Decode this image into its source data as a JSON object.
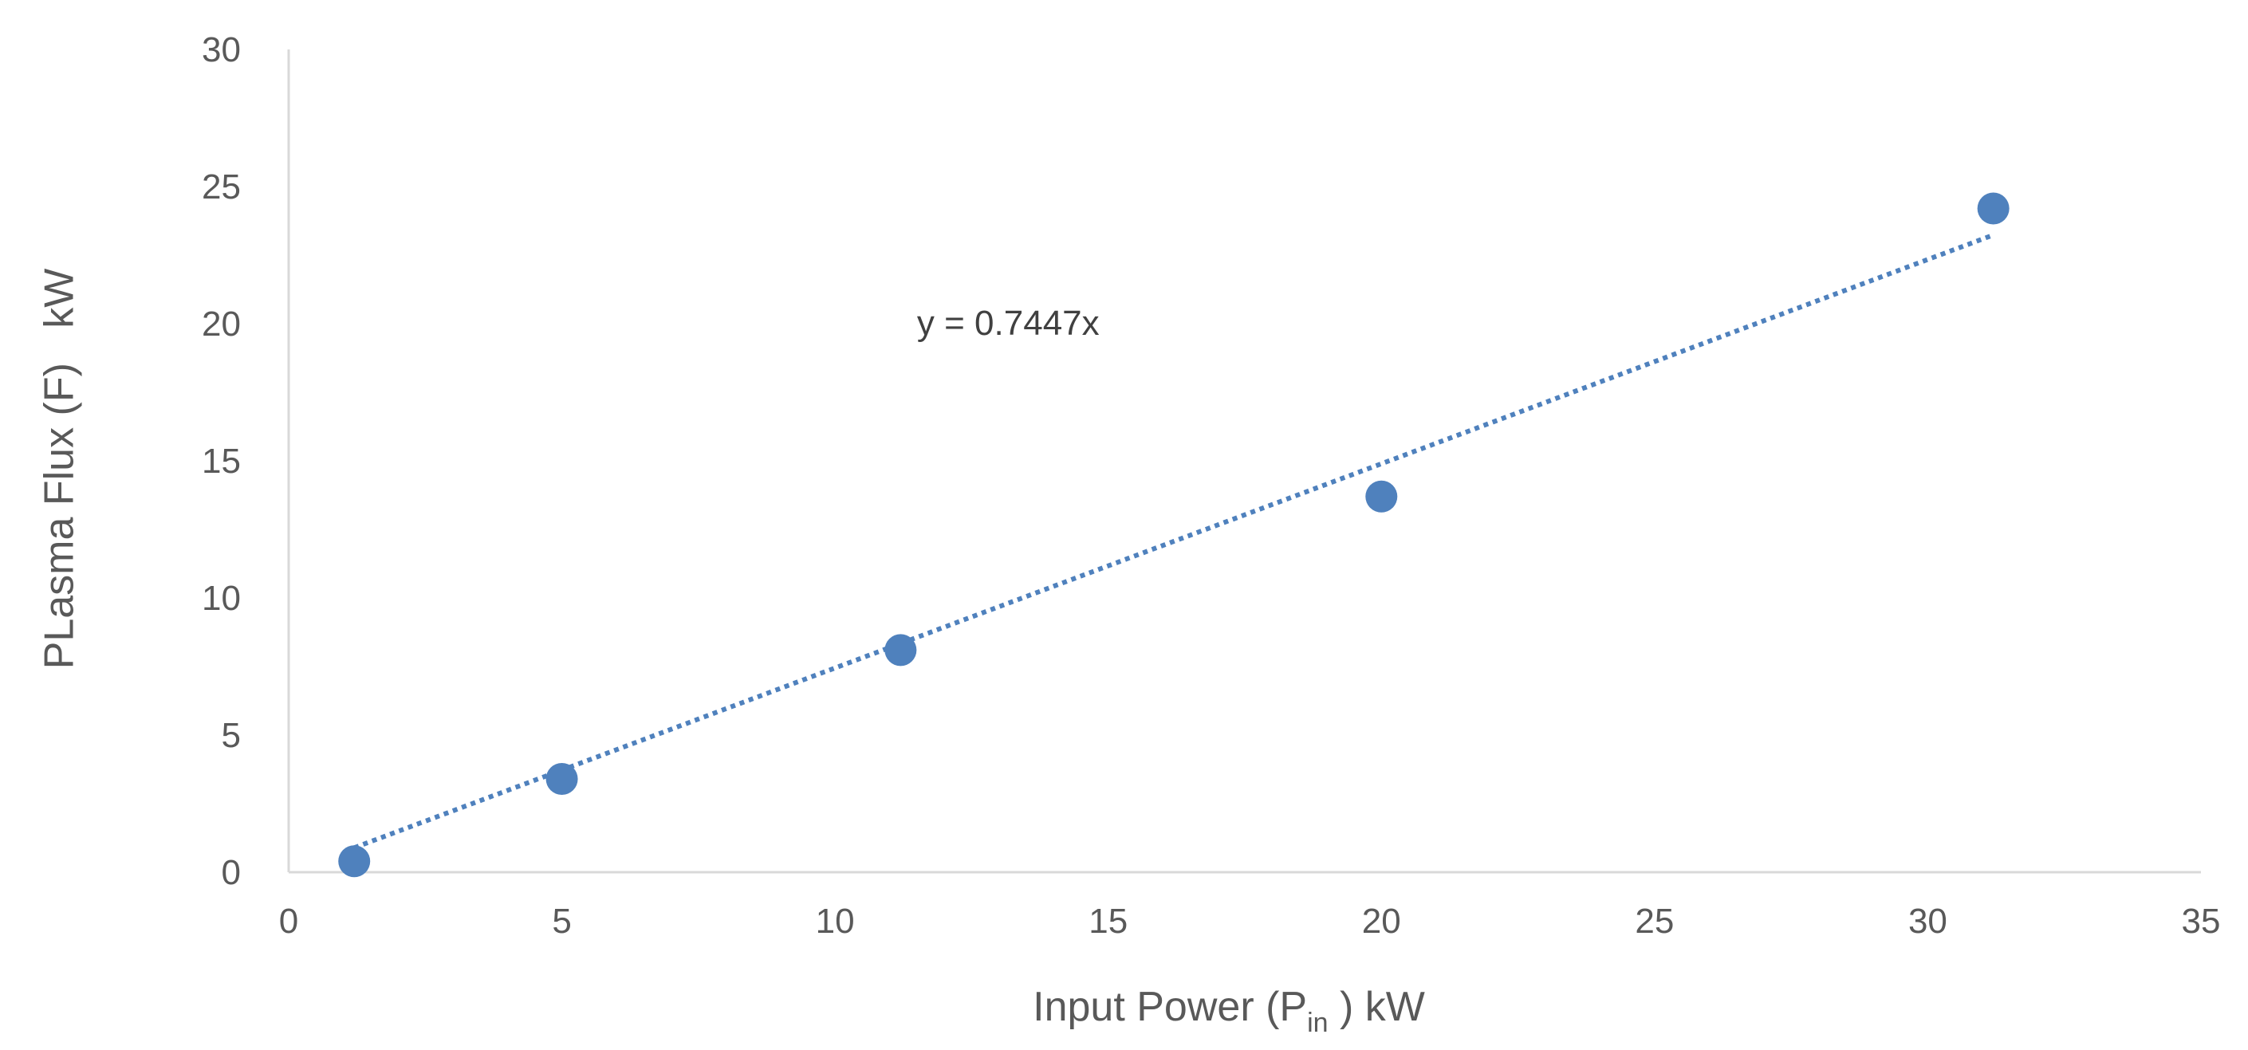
{
  "chart_data": {
    "type": "scatter",
    "xlabel": {
      "main": "Input Power (P",
      "subscript": "in",
      "suffix": " ) kW"
    },
    "ylabel": "PLasma Flux (F)   kW",
    "xlim": [
      0,
      35
    ],
    "ylim": [
      0,
      30
    ],
    "x_ticks": [
      "0",
      "5",
      "10",
      "15",
      "20",
      "25",
      "30",
      "35"
    ],
    "y_ticks": [
      "0",
      "5",
      "10",
      "15",
      "20",
      "25",
      "30"
    ],
    "grid": false,
    "legend": "none",
    "series": [
      {
        "x": [
          1.2,
          5.0,
          11.2,
          20.0,
          31.2
        ],
        "y": [
          0.4,
          3.4,
          8.1,
          13.7,
          24.2
        ],
        "color": "#4f81bd",
        "marker": "circle"
      }
    ],
    "trendline": {
      "type": "linear-through-origin",
      "slope": 0.7447,
      "x_range": [
        1.2,
        31.2
      ],
      "style": "dotted",
      "color": "#4f81bd"
    },
    "annotations": [
      {
        "text": "y = 0.7447x",
        "x": 11.5,
        "y": 19.6
      }
    ],
    "axis_color": "#d9d9d9"
  }
}
